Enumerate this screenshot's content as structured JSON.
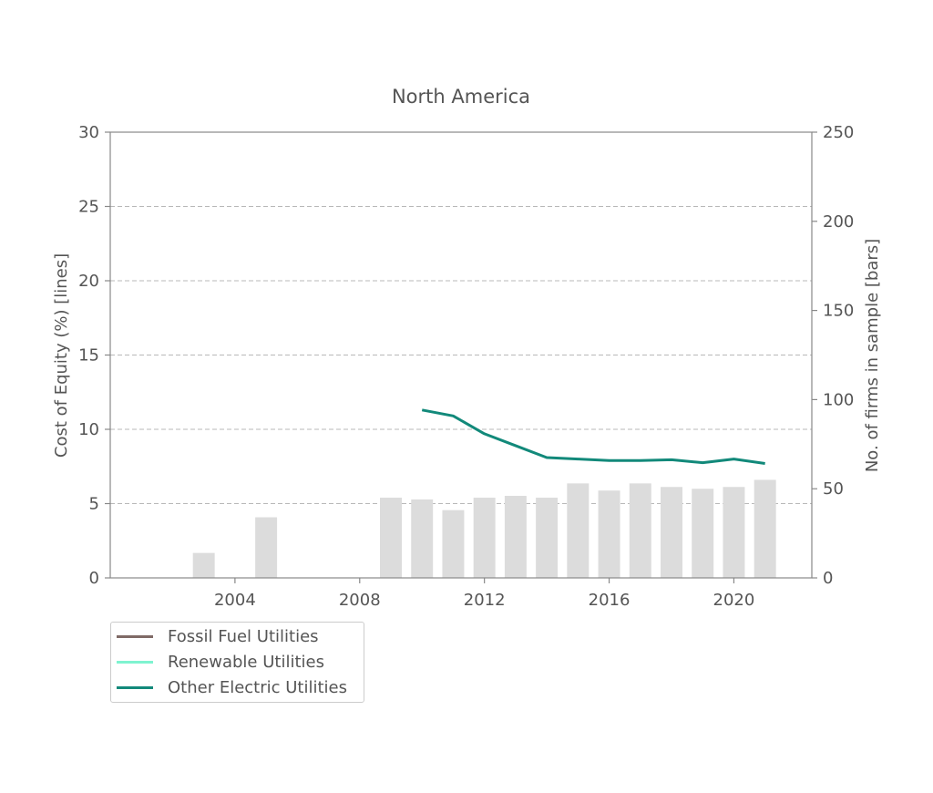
{
  "chart_data": {
    "type": "bar+line",
    "title": "North America",
    "ylabel_left": "Cost of Equity (%) [lines]",
    "ylabel_right": "No. of firms in sample [bars]",
    "xlim": [
      2000,
      2022.5
    ],
    "ylim_left": [
      0,
      30
    ],
    "ylim_right": [
      0,
      250
    ],
    "x_ticks": [
      2004,
      2008,
      2012,
      2016,
      2020
    ],
    "y_left_ticks": [
      0,
      5,
      10,
      15,
      20,
      25,
      30
    ],
    "y_right_ticks": [
      0,
      50,
      100,
      150,
      200,
      250
    ],
    "grid": "horizontal-dashed",
    "legend_position": "below-left",
    "bars": {
      "name": "No. of firms in sample",
      "color": "#dcdcdc",
      "x": [
        2003,
        2005,
        2009,
        2010,
        2011,
        2012,
        2013,
        2014,
        2015,
        2016,
        2017,
        2018,
        2019,
        2020,
        2021
      ],
      "values": [
        14,
        34,
        45,
        44,
        38,
        45,
        46,
        45,
        53,
        49,
        53,
        51,
        50,
        51,
        55
      ]
    },
    "series": [
      {
        "name": "Fossil Fuel Utilities",
        "color": "#7f6a66",
        "x": [],
        "values": []
      },
      {
        "name": "Renewable Utilities",
        "color": "#7ff3d0",
        "x": [],
        "values": []
      },
      {
        "name": "Other Electric Utilities",
        "color": "#12897a",
        "x": [
          2010,
          2011,
          2012,
          2013,
          2014,
          2015,
          2016,
          2017,
          2018,
          2019,
          2020,
          2021
        ],
        "values": [
          11.3,
          10.9,
          9.7,
          8.9,
          8.1,
          8.0,
          7.9,
          7.9,
          7.95,
          7.75,
          8.0,
          7.7
        ]
      }
    ]
  }
}
